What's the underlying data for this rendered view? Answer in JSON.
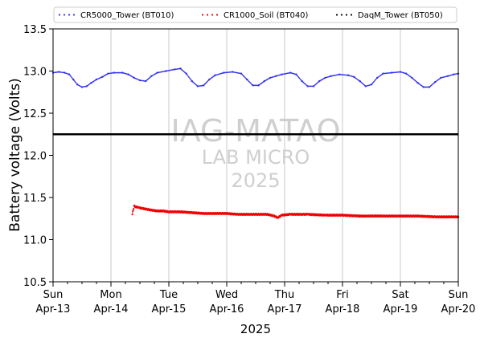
{
  "chart_data": {
    "type": "scatter",
    "title": "",
    "xlabel": "2025",
    "ylabel": "Battery voltage (Volts)",
    "ylim": [
      10.5,
      13.5
    ],
    "yticks": [
      "10.5",
      "11.0",
      "11.5",
      "12.0",
      "12.5",
      "13.0",
      "13.5"
    ],
    "xlim_days": [
      0,
      7
    ],
    "x_ticks": [
      {
        "day": "Sun",
        "date": "Apr-13"
      },
      {
        "day": "Mon",
        "date": "Apr-14"
      },
      {
        "day": "Tue",
        "date": "Apr-15"
      },
      {
        "day": "Wed",
        "date": "Apr-16"
      },
      {
        "day": "Thu",
        "date": "Apr-17"
      },
      {
        "day": "Fri",
        "date": "Apr-18"
      },
      {
        "day": "Sat",
        "date": "Apr-19"
      },
      {
        "day": "Sun",
        "date": "Apr-20"
      }
    ],
    "grid": "vertical",
    "legend_position": "top",
    "legend": [
      {
        "label": "CR5000_Tower (BT010)",
        "color": "#3333ee"
      },
      {
        "label": "CR1000_Soil (BT040)",
        "color": "#ee0000"
      },
      {
        "label": "DaqM_Tower (BT050)",
        "color": "#000000"
      }
    ],
    "reference_line": {
      "y": 12.25,
      "color": "#000000"
    },
    "watermark": [
      "IAG-MATAO",
      "LAB MICRO",
      "2025"
    ],
    "series": [
      {
        "name": "CR5000_Tower (BT010)",
        "color": "#3333ee",
        "points": [
          [
            0.0,
            12.98
          ],
          [
            0.1,
            12.99
          ],
          [
            0.2,
            12.98
          ],
          [
            0.28,
            12.96
          ],
          [
            0.35,
            12.9
          ],
          [
            0.42,
            12.84
          ],
          [
            0.5,
            12.81
          ],
          [
            0.58,
            12.82
          ],
          [
            0.66,
            12.86
          ],
          [
            0.75,
            12.9
          ],
          [
            0.85,
            12.93
          ],
          [
            0.95,
            12.97
          ],
          [
            1.05,
            12.98
          ],
          [
            1.2,
            12.98
          ],
          [
            1.3,
            12.96
          ],
          [
            1.4,
            12.92
          ],
          [
            1.5,
            12.89
          ],
          [
            1.6,
            12.88
          ],
          [
            1.7,
            12.94
          ],
          [
            1.8,
            12.98
          ],
          [
            1.95,
            13.0
          ],
          [
            2.1,
            13.02
          ],
          [
            2.2,
            13.03
          ],
          [
            2.3,
            12.97
          ],
          [
            2.4,
            12.88
          ],
          [
            2.5,
            12.82
          ],
          [
            2.6,
            12.83
          ],
          [
            2.7,
            12.9
          ],
          [
            2.8,
            12.95
          ],
          [
            2.95,
            12.98
          ],
          [
            3.1,
            12.99
          ],
          [
            3.25,
            12.97
          ],
          [
            3.35,
            12.9
          ],
          [
            3.45,
            12.83
          ],
          [
            3.55,
            12.83
          ],
          [
            3.65,
            12.88
          ],
          [
            3.75,
            12.92
          ],
          [
            3.85,
            12.94
          ],
          [
            3.95,
            12.96
          ],
          [
            4.1,
            12.98
          ],
          [
            4.2,
            12.96
          ],
          [
            4.3,
            12.88
          ],
          [
            4.4,
            12.82
          ],
          [
            4.5,
            12.82
          ],
          [
            4.6,
            12.88
          ],
          [
            4.7,
            12.92
          ],
          [
            4.8,
            12.94
          ],
          [
            4.95,
            12.96
          ],
          [
            5.1,
            12.95
          ],
          [
            5.2,
            12.93
          ],
          [
            5.3,
            12.88
          ],
          [
            5.4,
            12.82
          ],
          [
            5.5,
            12.84
          ],
          [
            5.6,
            12.92
          ],
          [
            5.7,
            12.97
          ],
          [
            5.85,
            12.98
          ],
          [
            6.0,
            12.99
          ],
          [
            6.1,
            12.97
          ],
          [
            6.2,
            12.92
          ],
          [
            6.3,
            12.86
          ],
          [
            6.4,
            12.81
          ],
          [
            6.5,
            12.81
          ],
          [
            6.6,
            12.87
          ],
          [
            6.7,
            12.92
          ],
          [
            6.82,
            12.94
          ],
          [
            6.92,
            12.96
          ],
          [
            7.0,
            12.97
          ]
        ]
      },
      {
        "name": "CR1000_Soil (BT040)",
        "color": "#ee0000",
        "points": [
          [
            1.37,
            11.3
          ],
          [
            1.4,
            11.4
          ],
          [
            1.42,
            11.39
          ],
          [
            1.48,
            11.38
          ],
          [
            1.55,
            11.37
          ],
          [
            1.62,
            11.36
          ],
          [
            1.7,
            11.35
          ],
          [
            1.8,
            11.34
          ],
          [
            1.9,
            11.34
          ],
          [
            2.0,
            11.33
          ],
          [
            2.2,
            11.33
          ],
          [
            2.4,
            11.32
          ],
          [
            2.6,
            11.31
          ],
          [
            2.8,
            11.31
          ],
          [
            3.0,
            11.31
          ],
          [
            3.2,
            11.3
          ],
          [
            3.4,
            11.3
          ],
          [
            3.7,
            11.3
          ],
          [
            3.82,
            11.28
          ],
          [
            3.88,
            11.26
          ],
          [
            3.95,
            11.29
          ],
          [
            4.1,
            11.3
          ],
          [
            4.4,
            11.3
          ],
          [
            4.7,
            11.29
          ],
          [
            5.0,
            11.29
          ],
          [
            5.3,
            11.28
          ],
          [
            5.6,
            11.28
          ],
          [
            6.0,
            11.28
          ],
          [
            6.3,
            11.28
          ],
          [
            6.6,
            11.27
          ],
          [
            6.85,
            11.27
          ],
          [
            7.0,
            11.27
          ]
        ]
      },
      {
        "name": "DaqM_Tower (BT050)",
        "color": "#000000",
        "points": [
          [
            1.4,
            12.25
          ]
        ]
      }
    ]
  }
}
